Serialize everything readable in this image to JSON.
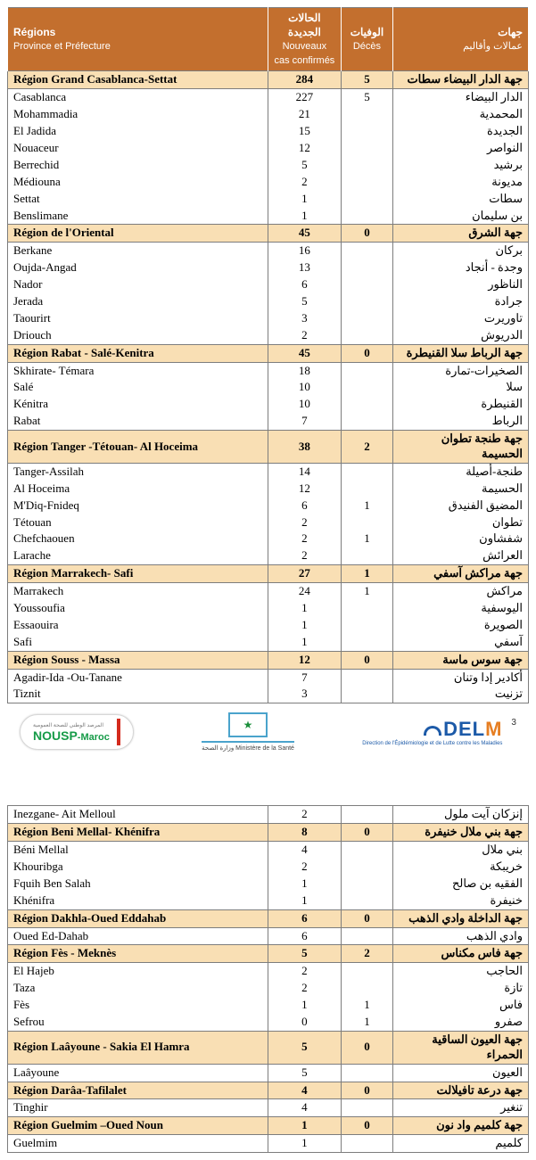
{
  "header": {
    "fr_regions": "Régions",
    "fr_province": "Province et Préfecture",
    "ar_cases": "الحالات الجديدة",
    "fr_cases": "Nouveaux cas confirmés",
    "ar_deaths": "الوفيات",
    "fr_deaths": "Décès",
    "ar_jihat": "جهات",
    "ar_amalat": "عمالات وأقاليم",
    "colors": {
      "header_bg": "#c36f2e",
      "header_text": "#ffffff",
      "region_bg": "#f9dfb4",
      "border": "#7d7d7d"
    }
  },
  "rows1": [
    {
      "t": "r",
      "fr": "Région Grand Casablanca-Settat",
      "cases": "284",
      "deaths": "5",
      "ar": "جهة الدار البيضاء سطات"
    },
    {
      "t": "p",
      "fr": "Casablanca",
      "cases": "227",
      "deaths": "5",
      "ar": "الدار البيضاء"
    },
    {
      "t": "p",
      "fr": "Mohammadia",
      "cases": "21",
      "deaths": "",
      "ar": "المحمدية"
    },
    {
      "t": "p",
      "fr": "El Jadida",
      "cases": "15",
      "deaths": "",
      "ar": "الجديدة"
    },
    {
      "t": "p",
      "fr": "Nouaceur",
      "cases": "12",
      "deaths": "",
      "ar": "النواصر"
    },
    {
      "t": "p",
      "fr": "Berrechid",
      "cases": "5",
      "deaths": "",
      "ar": "برشيد"
    },
    {
      "t": "p",
      "fr": "Médiouna",
      "cases": "2",
      "deaths": "",
      "ar": "مديونة"
    },
    {
      "t": "p",
      "fr": "Settat",
      "cases": "1",
      "deaths": "",
      "ar": "سطات"
    },
    {
      "t": "p",
      "fr": "Benslimane",
      "cases": "1",
      "deaths": "",
      "ar": "بن سليمان"
    },
    {
      "t": "r",
      "fr": "Région de l'Oriental",
      "cases": "45",
      "deaths": "0",
      "ar": "جهة الشرق"
    },
    {
      "t": "p",
      "fr": "Berkane",
      "cases": "16",
      "deaths": "",
      "ar": "بركان"
    },
    {
      "t": "p",
      "fr": "Oujda-Angad",
      "cases": "13",
      "deaths": "",
      "ar": "وجدة - أنجاد"
    },
    {
      "t": "p",
      "fr": "Nador",
      "cases": "6",
      "deaths": "",
      "ar": "الناظور"
    },
    {
      "t": "p",
      "fr": "Jerada",
      "cases": "5",
      "deaths": "",
      "ar": "جرادة"
    },
    {
      "t": "p",
      "fr": "Taourirt",
      "cases": "3",
      "deaths": "",
      "ar": "تاوريرت"
    },
    {
      "t": "p",
      "fr": "Driouch",
      "cases": "2",
      "deaths": "",
      "ar": "الدريوش"
    },
    {
      "t": "r",
      "fr": "Région Rabat - Salé-Kenitra",
      "cases": "45",
      "deaths": "0",
      "ar": "جهة الرباط سلا القنيطرة"
    },
    {
      "t": "p",
      "fr": "Skhirate- Témara",
      "cases": "18",
      "deaths": "",
      "ar": "الصخيرات-تمارة"
    },
    {
      "t": "p",
      "fr": "Salé",
      "cases": "10",
      "deaths": "",
      "ar": "سلا"
    },
    {
      "t": "p",
      "fr": "Kénitra",
      "cases": "10",
      "deaths": "",
      "ar": "القنيطرة"
    },
    {
      "t": "p",
      "fr": "Rabat",
      "cases": "7",
      "deaths": "",
      "ar": "الرباط"
    },
    {
      "t": "r",
      "fr": "Région Tanger -Tétouan- Al Hoceima",
      "cases": "38",
      "deaths": "2",
      "ar": "جهة طنجة تطوان الحسيمة"
    },
    {
      "t": "p",
      "fr": "Tanger-Assilah",
      "cases": "14",
      "deaths": "",
      "ar": "طنجة-أصيلة"
    },
    {
      "t": "p",
      "fr": "Al Hoceima",
      "cases": "12",
      "deaths": "",
      "ar": "الحسيمة"
    },
    {
      "t": "p",
      "fr": "M'Diq-Fnideq",
      "cases": "6",
      "deaths": "1",
      "ar": "المضيق الفنيدق"
    },
    {
      "t": "p",
      "fr": "Tétouan",
      "cases": "2",
      "deaths": "",
      "ar": "تطوان"
    },
    {
      "t": "p",
      "fr": "Chefchaouen",
      "cases": "2",
      "deaths": "1",
      "ar": "شفشاون"
    },
    {
      "t": "p",
      "fr": "Larache",
      "cases": "2",
      "deaths": "",
      "ar": "العرائش"
    },
    {
      "t": "r",
      "fr": "Région Marrakech- Safi",
      "cases": "27",
      "deaths": "1",
      "ar": "جهة مراكش آسفي"
    },
    {
      "t": "p",
      "fr": "Marrakech",
      "cases": "24",
      "deaths": "1",
      "ar": "مراكش"
    },
    {
      "t": "p",
      "fr": "Youssoufia",
      "cases": "1",
      "deaths": "",
      "ar": "اليوسفية"
    },
    {
      "t": "p",
      "fr": "Essaouira",
      "cases": "1",
      "deaths": "",
      "ar": "الصويرة"
    },
    {
      "t": "p",
      "fr": "Safi",
      "cases": "1",
      "deaths": "",
      "ar": "آسفي"
    },
    {
      "t": "r",
      "fr": "Région Souss - Massa",
      "cases": "12",
      "deaths": "0",
      "ar": "جهة سوس ماسة"
    },
    {
      "t": "p",
      "fr": "Agadir-Ida -Ou-Tanane",
      "cases": "7",
      "deaths": "",
      "ar": "أكادير إدا وتنان"
    },
    {
      "t": "p",
      "fr": "Tiznit",
      "cases": "3",
      "deaths": "",
      "ar": "تزنيت"
    }
  ],
  "rows2": [
    {
      "t": "p",
      "fr": "Inezgane- Ait Melloul",
      "cases": "2",
      "deaths": "",
      "ar": "إنزكان آيت ملول"
    },
    {
      "t": "r",
      "fr": "Région Beni Mellal- Khénifra",
      "cases": "8",
      "deaths": "0",
      "ar": "جهة بني ملال خنيفرة"
    },
    {
      "t": "p",
      "fr": "Béni Mellal",
      "cases": "4",
      "deaths": "",
      "ar": "بني ملال"
    },
    {
      "t": "p",
      "fr": "Khouribga",
      "cases": "2",
      "deaths": "",
      "ar": "خريبكة"
    },
    {
      "t": "p",
      "fr": "Fquih Ben Salah",
      "cases": "1",
      "deaths": "",
      "ar": "الفقيه بن صالح"
    },
    {
      "t": "p",
      "fr": "Khénifra",
      "cases": "1",
      "deaths": "",
      "ar": "خنيفرة"
    },
    {
      "t": "r",
      "fr": "Région Dakhla-Oued Eddahab",
      "cases": "6",
      "deaths": "0",
      "ar": "جهة الداخلة وادي الذهب"
    },
    {
      "t": "p",
      "fr": "Oued Ed-Dahab",
      "cases": "6",
      "deaths": "",
      "ar": "وادي الذهب"
    },
    {
      "t": "r",
      "fr": "Région Fès - Meknès",
      "cases": "5",
      "deaths": "2",
      "ar": "جهة فاس مكناس"
    },
    {
      "t": "p",
      "fr": "El  Hajeb",
      "cases": "2",
      "deaths": "",
      "ar": "الحاجب"
    },
    {
      "t": "p",
      "fr": "Taza",
      "cases": "2",
      "deaths": "",
      "ar": "تازة"
    },
    {
      "t": "p",
      "fr": "Fès",
      "cases": "1",
      "deaths": "1",
      "ar": "فاس"
    },
    {
      "t": "p",
      "fr": "Sefrou",
      "cases": "0",
      "deaths": "1",
      "ar": "صفرو"
    },
    {
      "t": "r",
      "fr": "Région Laâyoune - Sakia El Hamra",
      "cases": "5",
      "deaths": "0",
      "ar": "جهة العيون الساقية الحمراء"
    },
    {
      "t": "p",
      "fr": "Laâyoune",
      "cases": "5",
      "deaths": "",
      "ar": "العيون"
    },
    {
      "t": "r",
      "fr": "Région Darâa-Tafilalet",
      "cases": "4",
      "deaths": "0",
      "ar": "جهة درعة تافيلالت"
    },
    {
      "t": "p",
      "fr": "Tinghir",
      "cases": "4",
      "deaths": "",
      "ar": "تنغير"
    },
    {
      "t": "r",
      "fr": "Région Guelmim –Oued Noun",
      "cases": "1",
      "deaths": "0",
      "ar": "جهة كلميم واد نون"
    },
    {
      "t": "p",
      "fr": "Guelmim",
      "cases": "1",
      "deaths": "",
      "ar": "كلميم"
    }
  ],
  "footer": {
    "nousp_text": "NOUSP",
    "nousp_suffix": "-Maroc",
    "minist_caption": "وزارة الصحة\nMinistère de la Santé",
    "delm_text": "DELM",
    "delm_sub": "Direction de l'Épidémiologie\net de Lutte contre les Maladies",
    "page_number": "3"
  }
}
